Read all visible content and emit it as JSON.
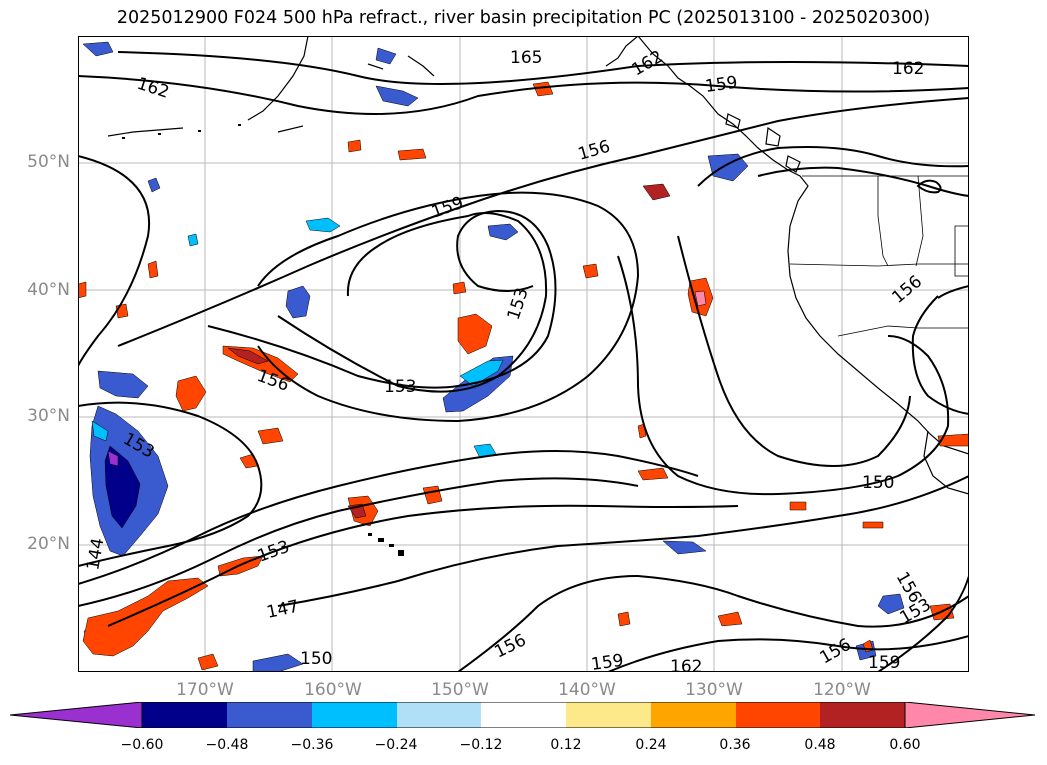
{
  "title": "2025012900 F024 500 hPa refract., river basin precipitation PC (2025013100 - 2025020300)",
  "axes": {
    "lat_labels": [
      "50°N",
      "40°N",
      "30°N",
      "20°N"
    ],
    "lon_labels": [
      "170°W",
      "160°W",
      "150°W",
      "140°W",
      "130°W",
      "120°W"
    ]
  },
  "contour_labels": [
    "165",
    "162",
    "162",
    "159",
    "159",
    "156",
    "153",
    "153",
    "156",
    "150",
    "150",
    "147",
    "144",
    "153",
    "153",
    "156",
    "159",
    "162",
    "159",
    "156",
    "156",
    "153",
    "162",
    "156"
  ],
  "colorbar": {
    "ticks": [
      "−0.60",
      "−0.48",
      "−0.36",
      "−0.24",
      "−0.12",
      "0.12",
      "0.24",
      "0.36",
      "0.48",
      "0.60"
    ],
    "colors": [
      "#9b30d0",
      "#00008b",
      "#3a5bd0",
      "#00bfff",
      "#b0e0f8",
      "#ffffff",
      "#fde98a",
      "#ffa500",
      "#ff4500",
      "#b22222",
      "#ff88aa"
    ]
  }
}
